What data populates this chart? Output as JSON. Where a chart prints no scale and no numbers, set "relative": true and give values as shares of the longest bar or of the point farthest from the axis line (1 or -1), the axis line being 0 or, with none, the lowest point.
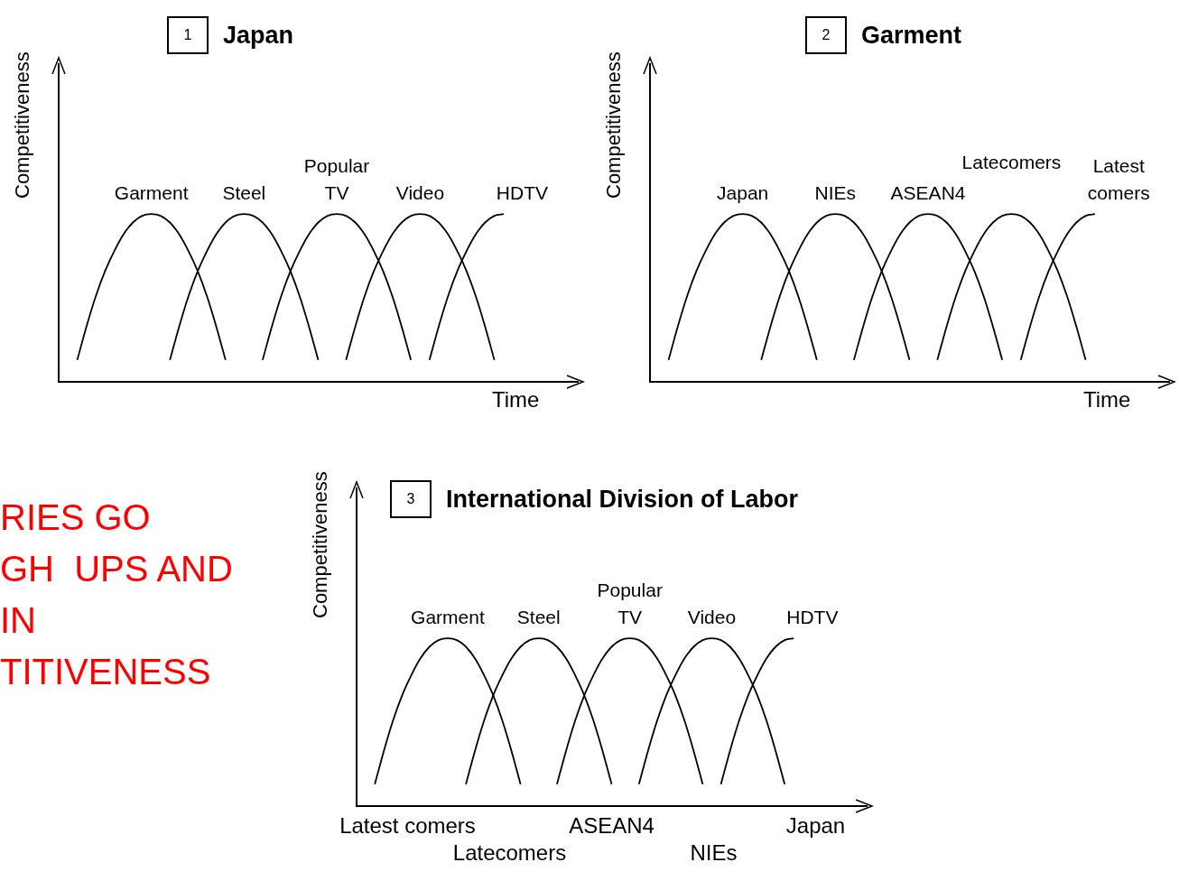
{
  "chart_data": [
    {
      "type": "line",
      "title": "Japan",
      "annotations": [
        "1"
      ],
      "ylabel": "Competitiveness",
      "xlabel": "Time",
      "relative": true,
      "tick_labels": false,
      "categories": [
        null,
        null,
        null,
        null,
        null,
        null,
        null,
        null,
        null,
        null,
        null,
        null,
        null,
        null,
        null,
        null,
        null,
        null,
        null,
        null,
        null,
        null,
        null,
        null,
        null,
        null,
        null,
        null,
        null,
        null,
        null,
        null,
        null,
        null,
        null,
        null,
        null,
        null,
        null,
        null,
        null,
        null,
        null,
        null,
        null,
        null,
        null,
        null,
        null,
        null,
        null,
        null,
        null,
        null,
        null,
        null,
        null
      ],
      "series": [
        {
          "name": "Garment",
          "color": "#000000",
          "values": [
            null,
            null,
            0.13,
            0.33,
            0.51,
            0.66,
            0.78,
            0.88,
            0.95,
            0.99,
            1,
            0.99,
            0.95,
            0.88,
            0.78,
            0.66,
            0.51,
            0.33,
            0.13,
            null,
            null,
            null,
            null,
            null,
            null,
            null,
            null,
            null,
            null,
            null,
            null,
            null,
            null,
            null,
            null,
            null,
            null,
            null,
            null,
            null,
            null,
            null,
            null,
            null,
            null,
            null,
            null,
            null,
            null,
            null,
            null,
            null,
            null,
            null,
            null,
            null,
            null
          ]
        },
        {
          "name": "Steel",
          "color": "#000000",
          "values": [
            null,
            null,
            null,
            null,
            null,
            null,
            null,
            null,
            null,
            null,
            null,
            null,
            0.13,
            0.33,
            0.51,
            0.66,
            0.78,
            0.88,
            0.95,
            0.99,
            1,
            0.99,
            0.95,
            0.88,
            0.78,
            0.66,
            0.51,
            0.33,
            0.13,
            null,
            null,
            null,
            null,
            null,
            null,
            null,
            null,
            null,
            null,
            null,
            null,
            null,
            null,
            null,
            null,
            null,
            null,
            null,
            null,
            null,
            null,
            null,
            null,
            null,
            null,
            null,
            null
          ]
        },
        {
          "name": "Popular TV",
          "color": "#000000",
          "values": [
            null,
            null,
            null,
            null,
            null,
            null,
            null,
            null,
            null,
            null,
            null,
            null,
            null,
            null,
            null,
            null,
            null,
            null,
            null,
            null,
            null,
            null,
            0.13,
            0.33,
            0.51,
            0.66,
            0.78,
            0.88,
            0.95,
            0.99,
            1,
            0.99,
            0.95,
            0.88,
            0.78,
            0.66,
            0.51,
            0.33,
            0.13,
            null,
            null,
            null,
            null,
            null,
            null,
            null,
            null,
            null,
            null,
            null,
            null,
            null,
            null,
            null,
            null,
            null,
            null
          ]
        },
        {
          "name": "Video",
          "color": "#000000",
          "values": [
            null,
            null,
            null,
            null,
            null,
            null,
            null,
            null,
            null,
            null,
            null,
            null,
            null,
            null,
            null,
            null,
            null,
            null,
            null,
            null,
            null,
            null,
            null,
            null,
            null,
            null,
            null,
            null,
            null,
            null,
            null,
            0.13,
            0.33,
            0.51,
            0.66,
            0.78,
            0.88,
            0.95,
            0.99,
            1,
            0.99,
            0.95,
            0.88,
            0.78,
            0.66,
            0.51,
            0.33,
            0.13,
            null,
            null,
            null,
            null,
            null,
            null,
            null,
            null,
            null
          ]
        },
        {
          "name": "HDTV",
          "color": "#000000",
          "values": [
            null,
            null,
            null,
            null,
            null,
            null,
            null,
            null,
            null,
            null,
            null,
            null,
            null,
            null,
            null,
            null,
            null,
            null,
            null,
            null,
            null,
            null,
            null,
            null,
            null,
            null,
            null,
            null,
            null,
            null,
            null,
            null,
            null,
            null,
            null,
            null,
            null,
            null,
            null,
            null,
            0.13,
            0.33,
            0.51,
            0.66,
            0.78,
            0.88,
            0.95,
            0.99,
            1,
            null,
            null,
            null,
            null,
            null,
            null,
            null,
            null
          ]
        }
      ]
    },
    {
      "type": "line",
      "title": "Garment",
      "annotations": [
        "2"
      ],
      "ylabel": "Competitiveness",
      "xlabel": "Time",
      "relative": true,
      "tick_labels": false,
      "categories": [
        null,
        null,
        null,
        null,
        null,
        null,
        null,
        null,
        null,
        null,
        null,
        null,
        null,
        null,
        null,
        null,
        null,
        null,
        null,
        null,
        null,
        null,
        null,
        null,
        null,
        null,
        null,
        null,
        null,
        null,
        null,
        null,
        null,
        null,
        null,
        null,
        null,
        null,
        null,
        null,
        null,
        null,
        null,
        null,
        null,
        null,
        null,
        null,
        null,
        null,
        null,
        null,
        null,
        null,
        null,
        null,
        null
      ],
      "series": [
        {
          "name": "Japan",
          "color": "#000000",
          "values": [
            null,
            null,
            0.13,
            0.33,
            0.51,
            0.66,
            0.78,
            0.88,
            0.95,
            0.99,
            1,
            0.99,
            0.95,
            0.88,
            0.78,
            0.66,
            0.51,
            0.33,
            0.13,
            null,
            null,
            null,
            null,
            null,
            null,
            null,
            null,
            null,
            null,
            null,
            null,
            null,
            null,
            null,
            null,
            null,
            null,
            null,
            null,
            null,
            null,
            null,
            null,
            null,
            null,
            null,
            null,
            null,
            null,
            null,
            null,
            null,
            null,
            null,
            null,
            null,
            null
          ]
        },
        {
          "name": "NIEs",
          "color": "#000000",
          "values": [
            null,
            null,
            null,
            null,
            null,
            null,
            null,
            null,
            null,
            null,
            null,
            null,
            0.13,
            0.33,
            0.51,
            0.66,
            0.78,
            0.88,
            0.95,
            0.99,
            1,
            0.99,
            0.95,
            0.88,
            0.78,
            0.66,
            0.51,
            0.33,
            0.13,
            null,
            null,
            null,
            null,
            null,
            null,
            null,
            null,
            null,
            null,
            null,
            null,
            null,
            null,
            null,
            null,
            null,
            null,
            null,
            null,
            null,
            null,
            null,
            null,
            null,
            null,
            null,
            null
          ]
        },
        {
          "name": "ASEAN4",
          "color": "#000000",
          "values": [
            null,
            null,
            null,
            null,
            null,
            null,
            null,
            null,
            null,
            null,
            null,
            null,
            null,
            null,
            null,
            null,
            null,
            null,
            null,
            null,
            null,
            null,
            0.13,
            0.33,
            0.51,
            0.66,
            0.78,
            0.88,
            0.95,
            0.99,
            1,
            0.99,
            0.95,
            0.88,
            0.78,
            0.66,
            0.51,
            0.33,
            0.13,
            null,
            null,
            null,
            null,
            null,
            null,
            null,
            null,
            null,
            null,
            null,
            null,
            null,
            null,
            null,
            null,
            null,
            null
          ]
        },
        {
          "name": "Latecomers",
          "color": "#000000",
          "values": [
            null,
            null,
            null,
            null,
            null,
            null,
            null,
            null,
            null,
            null,
            null,
            null,
            null,
            null,
            null,
            null,
            null,
            null,
            null,
            null,
            null,
            null,
            null,
            null,
            null,
            null,
            null,
            null,
            null,
            null,
            null,
            0.13,
            0.33,
            0.51,
            0.66,
            0.78,
            0.88,
            0.95,
            0.99,
            1,
            0.99,
            0.95,
            0.88,
            0.78,
            0.66,
            0.51,
            0.33,
            0.13,
            null,
            null,
            null,
            null,
            null,
            null,
            null,
            null,
            null
          ]
        },
        {
          "name": "Latest comers",
          "color": "#000000",
          "values": [
            null,
            null,
            null,
            null,
            null,
            null,
            null,
            null,
            null,
            null,
            null,
            null,
            null,
            null,
            null,
            null,
            null,
            null,
            null,
            null,
            null,
            null,
            null,
            null,
            null,
            null,
            null,
            null,
            null,
            null,
            null,
            null,
            null,
            null,
            null,
            null,
            null,
            null,
            null,
            null,
            0.13,
            0.33,
            0.51,
            0.66,
            0.78,
            0.88,
            0.95,
            0.99,
            1,
            null,
            null,
            null,
            null,
            null,
            null,
            null,
            null
          ]
        }
      ]
    },
    {
      "type": "other",
      "annotations": [
        "RIES GO",
        "GH  UPS AND",
        "IN",
        "TITIVENESS"
      ]
    },
    {
      "type": "line",
      "title": "International Division of Labor",
      "annotations": [
        "3",
        "Latest comers",
        "Latecomers",
        "ASEAN4",
        "NIEs",
        "Japan"
      ],
      "ylabel": "Competitiveness",
      "relative": true,
      "tick_labels": false,
      "categories": [
        null,
        null,
        null,
        null,
        null,
        null,
        null,
        null,
        null,
        null,
        null,
        null,
        null,
        null,
        null,
        null,
        null,
        null,
        null,
        null,
        null,
        null,
        null,
        null,
        null,
        null,
        null,
        null,
        null,
        null,
        null,
        null,
        null,
        null,
        null,
        null,
        null,
        null,
        null,
        null,
        null,
        null,
        null,
        null,
        null,
        null,
        null,
        null,
        null,
        null,
        null,
        null,
        null,
        null,
        null,
        null,
        null
      ],
      "series": [
        {
          "name": "Garment",
          "color": "#000000",
          "values": [
            null,
            null,
            0.13,
            0.33,
            0.51,
            0.66,
            0.78,
            0.88,
            0.95,
            0.99,
            1,
            0.99,
            0.95,
            0.88,
            0.78,
            0.66,
            0.51,
            0.33,
            0.13,
            null,
            null,
            null,
            null,
            null,
            null,
            null,
            null,
            null,
            null,
            null,
            null,
            null,
            null,
            null,
            null,
            null,
            null,
            null,
            null,
            null,
            null,
            null,
            null,
            null,
            null,
            null,
            null,
            null,
            null,
            null,
            null,
            null,
            null,
            null,
            null,
            null,
            null
          ]
        },
        {
          "name": "Steel",
          "color": "#000000",
          "values": [
            null,
            null,
            null,
            null,
            null,
            null,
            null,
            null,
            null,
            null,
            null,
            null,
            0.13,
            0.33,
            0.51,
            0.66,
            0.78,
            0.88,
            0.95,
            0.99,
            1,
            0.99,
            0.95,
            0.88,
            0.78,
            0.66,
            0.51,
            0.33,
            0.13,
            null,
            null,
            null,
            null,
            null,
            null,
            null,
            null,
            null,
            null,
            null,
            null,
            null,
            null,
            null,
            null,
            null,
            null,
            null,
            null,
            null,
            null,
            null,
            null,
            null,
            null,
            null,
            null
          ]
        },
        {
          "name": "Popular TV",
          "color": "#000000",
          "values": [
            null,
            null,
            null,
            null,
            null,
            null,
            null,
            null,
            null,
            null,
            null,
            null,
            null,
            null,
            null,
            null,
            null,
            null,
            null,
            null,
            null,
            null,
            0.13,
            0.33,
            0.51,
            0.66,
            0.78,
            0.88,
            0.95,
            0.99,
            1,
            0.99,
            0.95,
            0.88,
            0.78,
            0.66,
            0.51,
            0.33,
            0.13,
            null,
            null,
            null,
            null,
            null,
            null,
            null,
            null,
            null,
            null,
            null,
            null,
            null,
            null,
            null,
            null,
            null,
            null
          ]
        },
        {
          "name": "Video",
          "color": "#000000",
          "values": [
            null,
            null,
            null,
            null,
            null,
            null,
            null,
            null,
            null,
            null,
            null,
            null,
            null,
            null,
            null,
            null,
            null,
            null,
            null,
            null,
            null,
            null,
            null,
            null,
            null,
            null,
            null,
            null,
            null,
            null,
            null,
            0.13,
            0.33,
            0.51,
            0.66,
            0.78,
            0.88,
            0.95,
            0.99,
            1,
            0.99,
            0.95,
            0.88,
            0.78,
            0.66,
            0.51,
            0.33,
            0.13,
            null,
            null,
            null,
            null,
            null,
            null,
            null,
            null,
            null
          ]
        },
        {
          "name": "HDTV",
          "color": "#000000",
          "values": [
            null,
            null,
            null,
            null,
            null,
            null,
            null,
            null,
            null,
            null,
            null,
            null,
            null,
            null,
            null,
            null,
            null,
            null,
            null,
            null,
            null,
            null,
            null,
            null,
            null,
            null,
            null,
            null,
            null,
            null,
            null,
            null,
            null,
            null,
            null,
            null,
            null,
            null,
            null,
            null,
            0.13,
            0.33,
            0.51,
            0.66,
            0.78,
            0.88,
            0.95,
            0.99,
            1,
            null,
            null,
            null,
            null,
            null,
            null,
            null,
            null
          ]
        }
      ]
    }
  ]
}
